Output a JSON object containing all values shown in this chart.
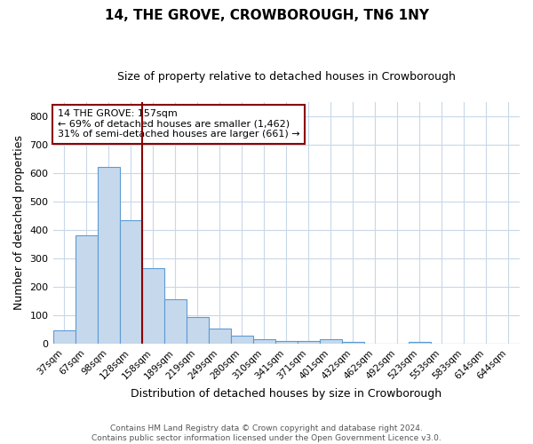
{
  "title": "14, THE GROVE, CROWBOROUGH, TN6 1NY",
  "subtitle": "Size of property relative to detached houses in Crowborough",
  "xlabel": "Distribution of detached houses by size in Crowborough",
  "ylabel": "Number of detached properties",
  "bin_labels": [
    "37sqm",
    "67sqm",
    "98sqm",
    "128sqm",
    "158sqm",
    "189sqm",
    "219sqm",
    "249sqm",
    "280sqm",
    "310sqm",
    "341sqm",
    "371sqm",
    "401sqm",
    "432sqm",
    "462sqm",
    "492sqm",
    "523sqm",
    "553sqm",
    "583sqm",
    "614sqm",
    "644sqm"
  ],
  "bar_heights": [
    47,
    380,
    623,
    435,
    265,
    155,
    95,
    52,
    28,
    17,
    10,
    10,
    14,
    7,
    0,
    0,
    7,
    0,
    0,
    0,
    0
  ],
  "bar_color": "#c6d9ec",
  "bar_edgecolor": "#5b9bd5",
  "vline_x_index": 3.5,
  "vline_color": "#8b0000",
  "annotation_text": "14 THE GROVE: 157sqm\n← 69% of detached houses are smaller (1,462)\n31% of semi-detached houses are larger (661) →",
  "annotation_box_edgecolor": "#8b0000",
  "ylim": [
    0,
    850
  ],
  "yticks": [
    0,
    100,
    200,
    300,
    400,
    500,
    600,
    700,
    800
  ],
  "footer": "Contains HM Land Registry data © Crown copyright and database right 2024.\nContains public sector information licensed under the Open Government Licence v3.0.",
  "background_color": "#ffffff",
  "grid_color": "#c8d8e8"
}
